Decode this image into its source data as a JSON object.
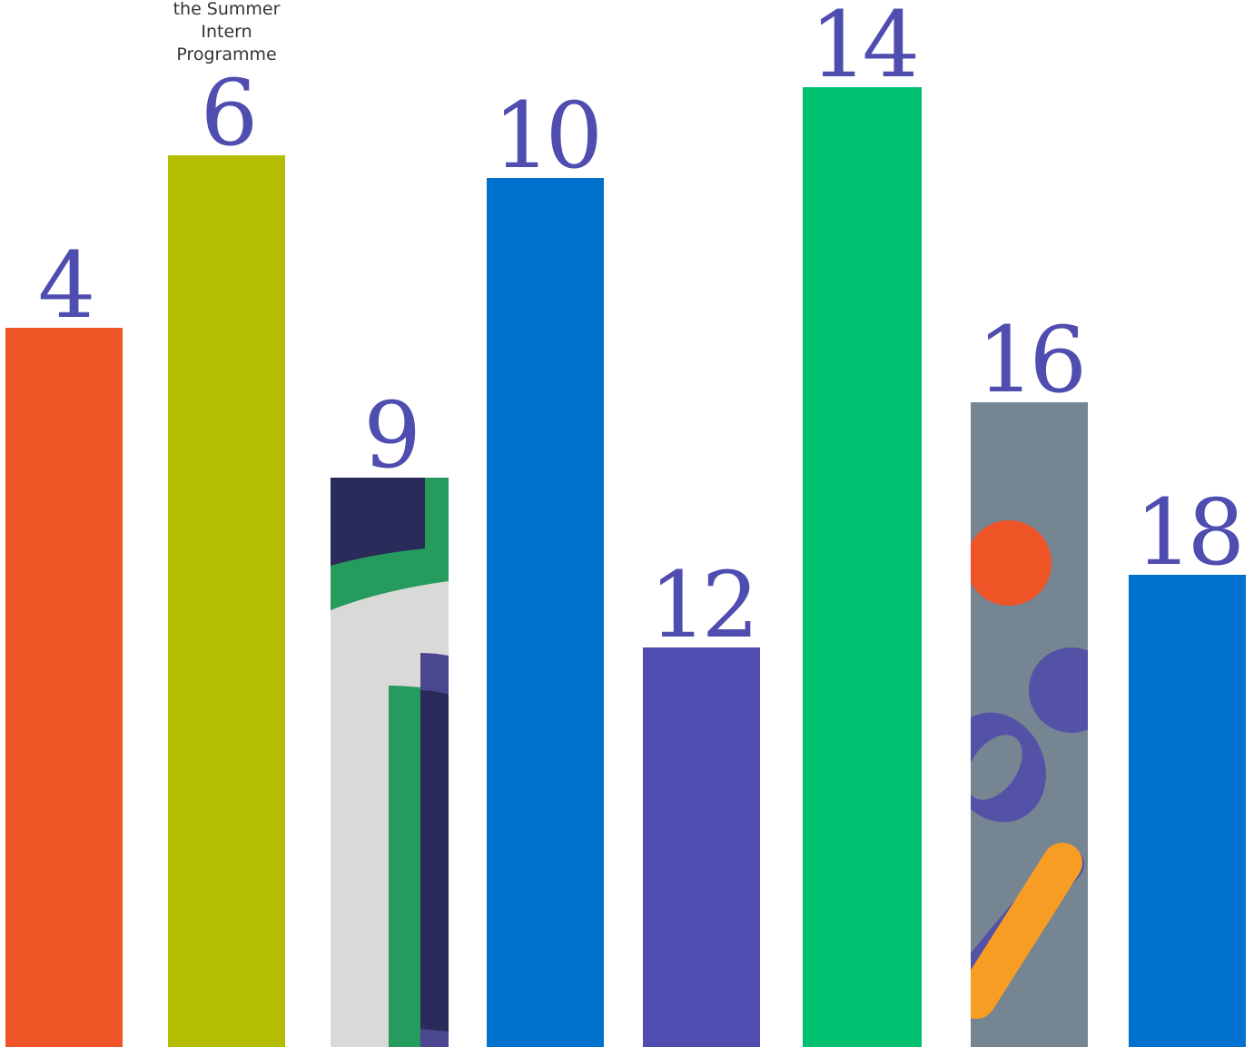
{
  "chart_data": {
    "type": "bar",
    "bars": [
      {
        "label": "4",
        "value": 4,
        "color": "#ee5426",
        "fill": "solid"
      },
      {
        "label": "6",
        "value": 6,
        "color": "#b5bd00",
        "fill": "solid",
        "caption": [
          "the Summer",
          "Intern",
          "Programme"
        ]
      },
      {
        "label": "9",
        "value": 9,
        "color": "#d9dad7",
        "fill": "pattern-arcs"
      },
      {
        "label": "10",
        "value": 10,
        "color": "#0072ce",
        "fill": "solid"
      },
      {
        "label": "12",
        "value": 12,
        "color": "#4f4db0",
        "fill": "solid"
      },
      {
        "label": "14",
        "value": 14,
        "color": "#00bf6f",
        "fill": "solid"
      },
      {
        "label": "16",
        "value": 16,
        "color": "#758592",
        "fill": "pattern-shapes"
      },
      {
        "label": "18",
        "value": 18,
        "color": "#0072ce",
        "fill": "solid"
      }
    ],
    "label_color": "#4f4db0",
    "caption_color": "#333333"
  }
}
